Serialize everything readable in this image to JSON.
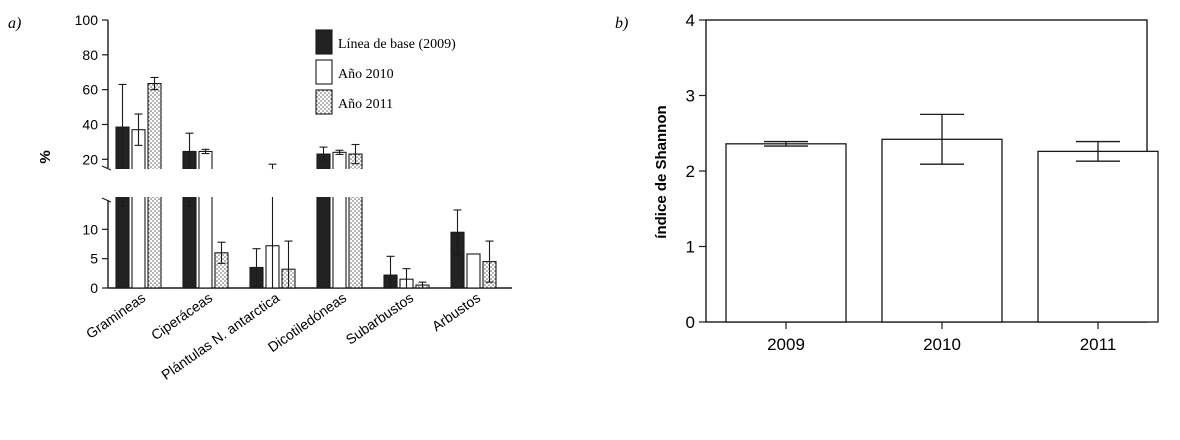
{
  "chart_data": [
    {
      "type": "bar",
      "panel_label": "a)",
      "ylabel": "%",
      "axis_break": true,
      "lower_ylim": [
        0,
        15
      ],
      "upper_ylim": [
        15,
        100
      ],
      "lower_ticks": [
        0,
        5,
        10
      ],
      "upper_ticks": [
        20,
        40,
        60,
        80,
        100
      ],
      "categories": [
        "Gramineas",
        "Ciperáceas",
        "Plántulas N. antarctica",
        "Dicotiledóneas",
        "Subarbustos",
        "Arbustos"
      ],
      "series": [
        {
          "name": "Línea de base (2009)",
          "fill": "solid",
          "values": [
            38.5,
            24.5,
            3.5,
            23,
            2.2,
            9.5
          ],
          "errors": [
            24.5,
            10.5,
            3.2,
            4,
            3.2,
            3.8
          ]
        },
        {
          "name": "Año 2010",
          "fill": "open",
          "values": [
            37,
            24.5,
            7.2,
            24,
            1.5,
            5.8
          ],
          "errors": [
            9,
            1.2,
            10,
            1.2,
            1.8,
            0
          ]
        },
        {
          "name": "Año 2011",
          "fill": "dotted",
          "values": [
            63.5,
            6,
            3.2,
            23,
            0.5,
            4.5
          ],
          "errors": [
            3.5,
            1.8,
            4.8,
            5.5,
            0.5,
            3.5
          ]
        }
      ],
      "legend_position": "top-right"
    },
    {
      "type": "bar",
      "panel_label": "b)",
      "ylabel": "índice de Shannon",
      "ylim": [
        0,
        4
      ],
      "yticks": [
        0,
        1,
        2,
        3,
        4
      ],
      "categories": [
        "2009",
        "2010",
        "2011"
      ],
      "values": [
        2.36,
        2.42,
        2.26
      ],
      "errors": [
        0.03,
        0.33,
        0.13
      ]
    }
  ]
}
